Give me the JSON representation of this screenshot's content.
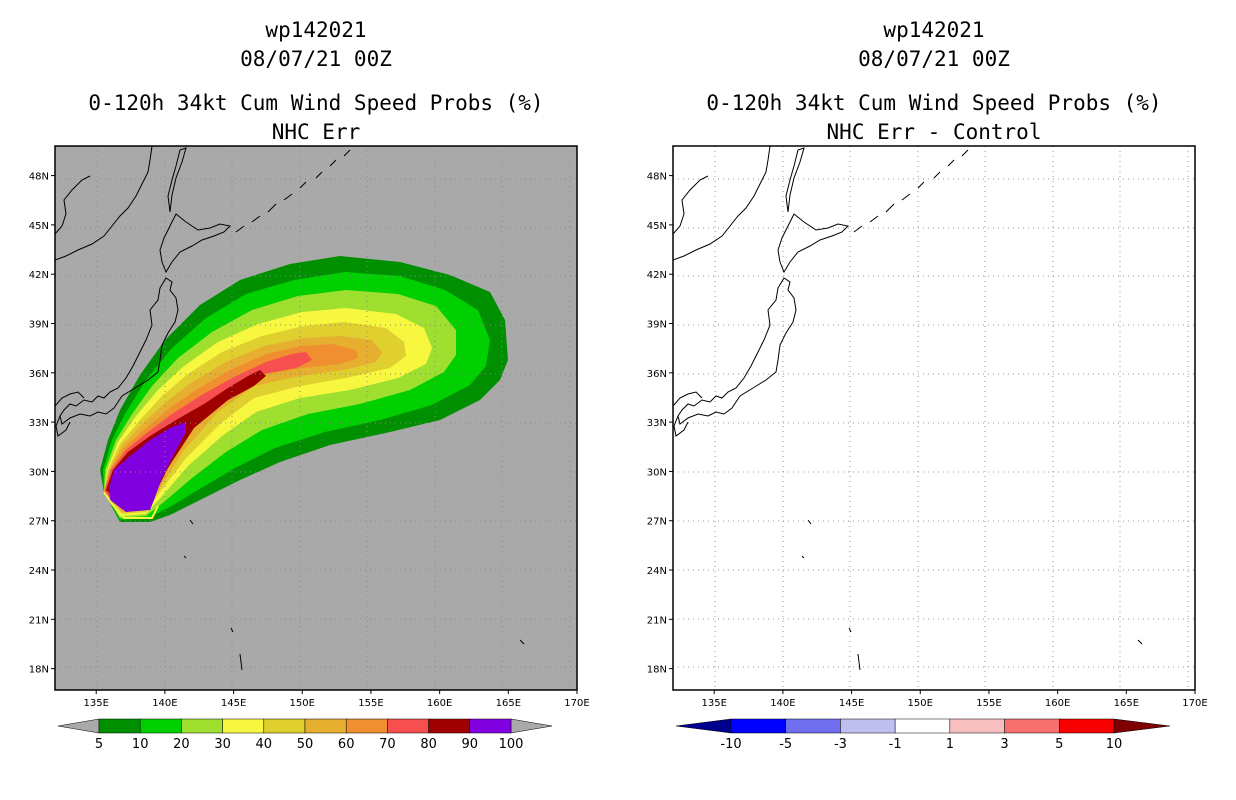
{
  "left_panel": {
    "title": {
      "storm_id": "wp142021",
      "datetime": "08/07/21 00Z",
      "product": "0-120h 34kt Cum Wind Speed Probs (%)",
      "subtitle": "NHC Err"
    },
    "background_color": "#a9a9a9",
    "colorbar": {
      "labels": [
        "5",
        "10",
        "20",
        "30",
        "40",
        "50",
        "60",
        "70",
        "80",
        "90",
        "100"
      ],
      "colors": [
        "#008f00",
        "#00cf00",
        "#9fdf2f",
        "#f7f73f",
        "#dfcf2f",
        "#e7af2f",
        "#ef8f2f",
        "#f74f4f",
        "#9f0000",
        "#8000df"
      ],
      "end_color": "#a9a9a9"
    }
  },
  "right_panel": {
    "title": {
      "storm_id": "wp142021",
      "datetime": "08/07/21 00Z",
      "product": "0-120h 34kt Cum Wind Speed Probs (%)",
      "subtitle": "NHC Err - Control"
    },
    "background_color": "#ffffff",
    "colorbar": {
      "labels": [
        "-10",
        "-5",
        "-3",
        "-1",
        "1",
        "3",
        "5",
        "10"
      ],
      "colors": [
        "#0000ff",
        "#6f6fef",
        "#bfbfef",
        "#ffffff",
        "#f7bfbf",
        "#f76f6f",
        "#f70000"
      ],
      "end_left_color": "#00008f",
      "end_right_color": "#7f0000"
    }
  },
  "map": {
    "lat_labels": [
      "48N",
      "45N",
      "42N",
      "39N",
      "36N",
      "33N",
      "30N",
      "27N",
      "24N",
      "21N",
      "18N"
    ],
    "lat_values": [
      48,
      45,
      42,
      39,
      36,
      33,
      30,
      27,
      24,
      21,
      18
    ],
    "lon_labels": [
      "135E",
      "140E",
      "145E",
      "150E",
      "155E",
      "160E",
      "165E",
      "170E"
    ],
    "lon_values": [
      135,
      140,
      145,
      150,
      155,
      160,
      165,
      170
    ],
    "lon_range": [
      132,
      170
    ],
    "lat_range": [
      16.7,
      49.8
    ]
  }
}
